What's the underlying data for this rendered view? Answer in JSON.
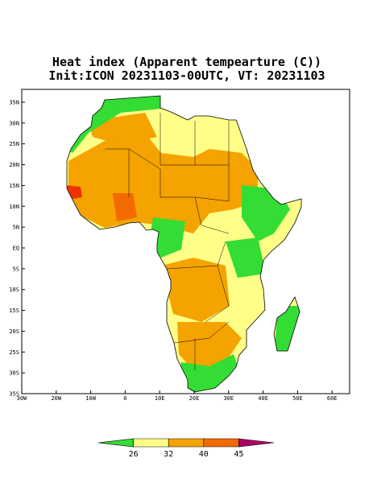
{
  "title": [
    "Heat index (Apparent tempearture (C))",
    "Init:ICON 20231103-00UTC, VT: 20231103"
  ],
  "map": {
    "x_ticks": [
      "30W",
      "20W",
      "10W",
      "0",
      "10E",
      "20E",
      "30E",
      "40E",
      "50E",
      "60E"
    ],
    "y_ticks": [
      "35N",
      "30N",
      "25N",
      "20N",
      "15N",
      "10N",
      "5N",
      "EQ",
      "5S",
      "10S",
      "15S",
      "20S",
      "25S",
      "30S",
      "35S"
    ]
  },
  "colorbar": {
    "ticks": [
      "26",
      "32",
      "40",
      "45"
    ],
    "colors": [
      "#33dd33",
      "#ffff88",
      "#f5a300",
      "#f26a00",
      "#aa0066"
    ]
  }
}
